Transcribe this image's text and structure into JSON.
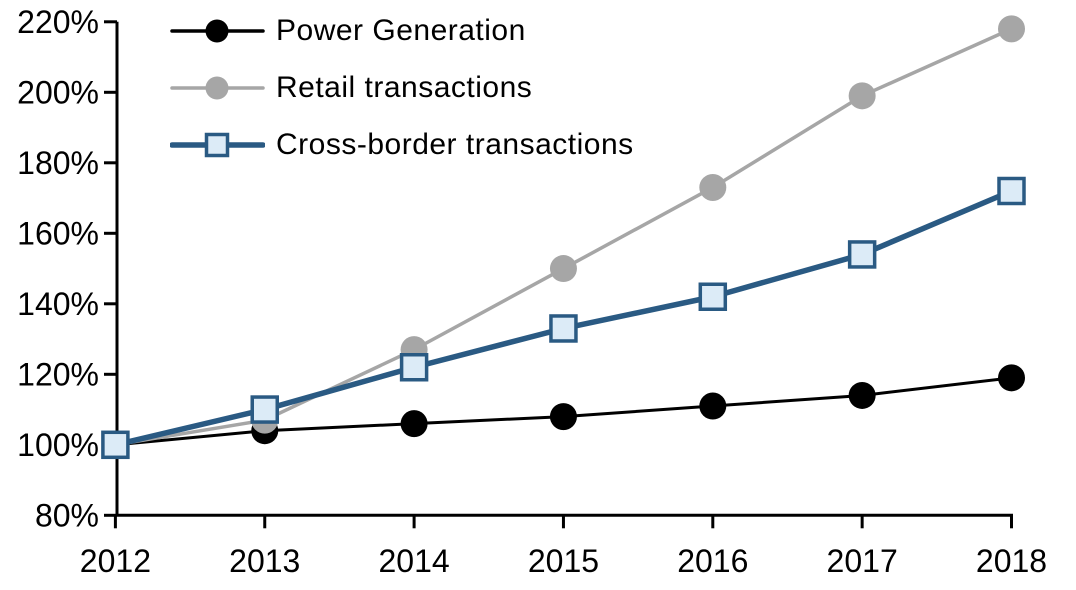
{
  "chart_data": {
    "type": "line",
    "title": "",
    "xlabel": "",
    "ylabel": "",
    "x": [
      2012,
      2013,
      2014,
      2015,
      2016,
      2017,
      2018
    ],
    "x_tick_labels": [
      "2012",
      "2013",
      "2014",
      "2015",
      "2016",
      "2017",
      "2018"
    ],
    "y_ticks": [
      80,
      100,
      120,
      140,
      160,
      180,
      200,
      220
    ],
    "y_tick_suffix": "%",
    "ylim": [
      80,
      220
    ],
    "grid": false,
    "legend_position": "top-left",
    "axis_color": "#000000",
    "background_color": "#ffffff",
    "series": [
      {
        "name": "Power Generation",
        "values": [
          100,
          104,
          106,
          108,
          111,
          114,
          119
        ],
        "color": "#000000",
        "marker": "circle",
        "marker_fill": "#000000",
        "line_width": 3
      },
      {
        "name": "Retail transactions",
        "values": [
          100,
          107,
          127,
          150,
          173,
          199,
          218
        ],
        "color": "#a6a6a6",
        "marker": "circle",
        "marker_fill": "#a6a6a6",
        "line_width": 3.5
      },
      {
        "name": "Cross-border transactions",
        "values": [
          100,
          110,
          122,
          133,
          142,
          154,
          172
        ],
        "color": "#2a5a83",
        "marker": "square",
        "marker_fill": "#dcebf7",
        "line_width": 5.5
      }
    ]
  }
}
